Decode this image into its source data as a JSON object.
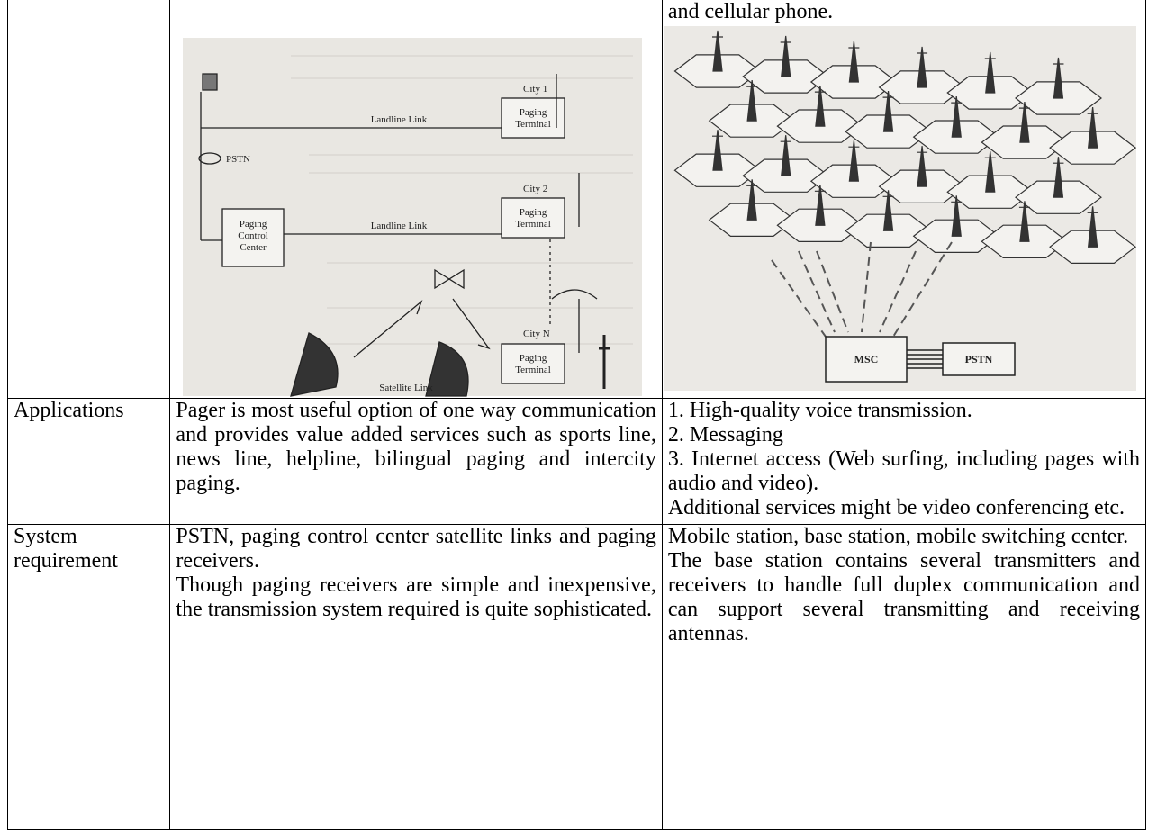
{
  "table": {
    "first_row": {
      "paging_diagram": {
        "pstn": "PSTN",
        "control_center": "Paging Control Center",
        "landline_link_1": "Landline Link",
        "landline_link_2": "Landline Link",
        "city_1": "City 1",
        "city_2": "City 2",
        "city_n": "City N",
        "terminals": [
          "Paging Terminal",
          "Paging Terminal",
          "Paging Terminal"
        ],
        "satellite_link": "Satellite Link"
      },
      "cellular_caption": "and cellular phone.",
      "cellular_diagram": {
        "msc": "MSC",
        "pstn": "PSTN"
      }
    },
    "rows": [
      {
        "label": "Applications",
        "paging": [
          "Pager is most useful option of one way communication and provides value added services such as sports line, news line, helpline, bilingual paging and intercity paging."
        ],
        "cellular": [
          "1. High-quality voice transmission.",
          "2. Messaging",
          "3. Internet access (Web surfing, including pages with audio and video).",
          "Additional services might be video conferencing etc."
        ]
      },
      {
        "label": "System requirement",
        "paging": [
          "PSTN, paging control center satellite links and paging receivers.",
          "Though paging receivers are simple and inexpensive, the transmission system required is quite sophisticated."
        ],
        "cellular": [
          "Mobile station, base station, mobile switching center.",
          "The base station contains several transmitters and receivers to handle full duplex communication and can support several transmitting and receiving antennas."
        ]
      }
    ]
  }
}
